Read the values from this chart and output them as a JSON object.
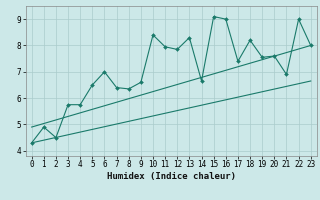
{
  "xlabel": "Humidex (Indice chaleur)",
  "bg_color": "#cce8e8",
  "grid_color": "#aacccc",
  "line_color": "#1a7a6a",
  "xlim": [
    -0.5,
    23.5
  ],
  "ylim": [
    3.8,
    9.5
  ],
  "xticks": [
    0,
    1,
    2,
    3,
    4,
    5,
    6,
    7,
    8,
    9,
    10,
    11,
    12,
    13,
    14,
    15,
    16,
    17,
    18,
    19,
    20,
    21,
    22,
    23
  ],
  "yticks": [
    4,
    5,
    6,
    7,
    8,
    9
  ],
  "main_series_x": [
    0,
    1,
    2,
    3,
    4,
    5,
    6,
    7,
    8,
    9,
    10,
    11,
    12,
    13,
    14,
    15,
    16,
    17,
    18,
    19,
    20,
    21,
    22,
    23
  ],
  "main_series_y": [
    4.3,
    4.9,
    4.5,
    5.75,
    5.75,
    6.5,
    7.0,
    6.4,
    6.35,
    6.6,
    8.4,
    7.95,
    7.85,
    8.3,
    6.65,
    9.1,
    9.0,
    7.4,
    8.2,
    7.55,
    7.6,
    6.9,
    9.0,
    8.0
  ],
  "lower_line_x": [
    0,
    23
  ],
  "lower_line_y": [
    4.3,
    6.65
  ],
  "upper_line_x": [
    0,
    23
  ],
  "upper_line_y": [
    4.9,
    8.0
  ]
}
